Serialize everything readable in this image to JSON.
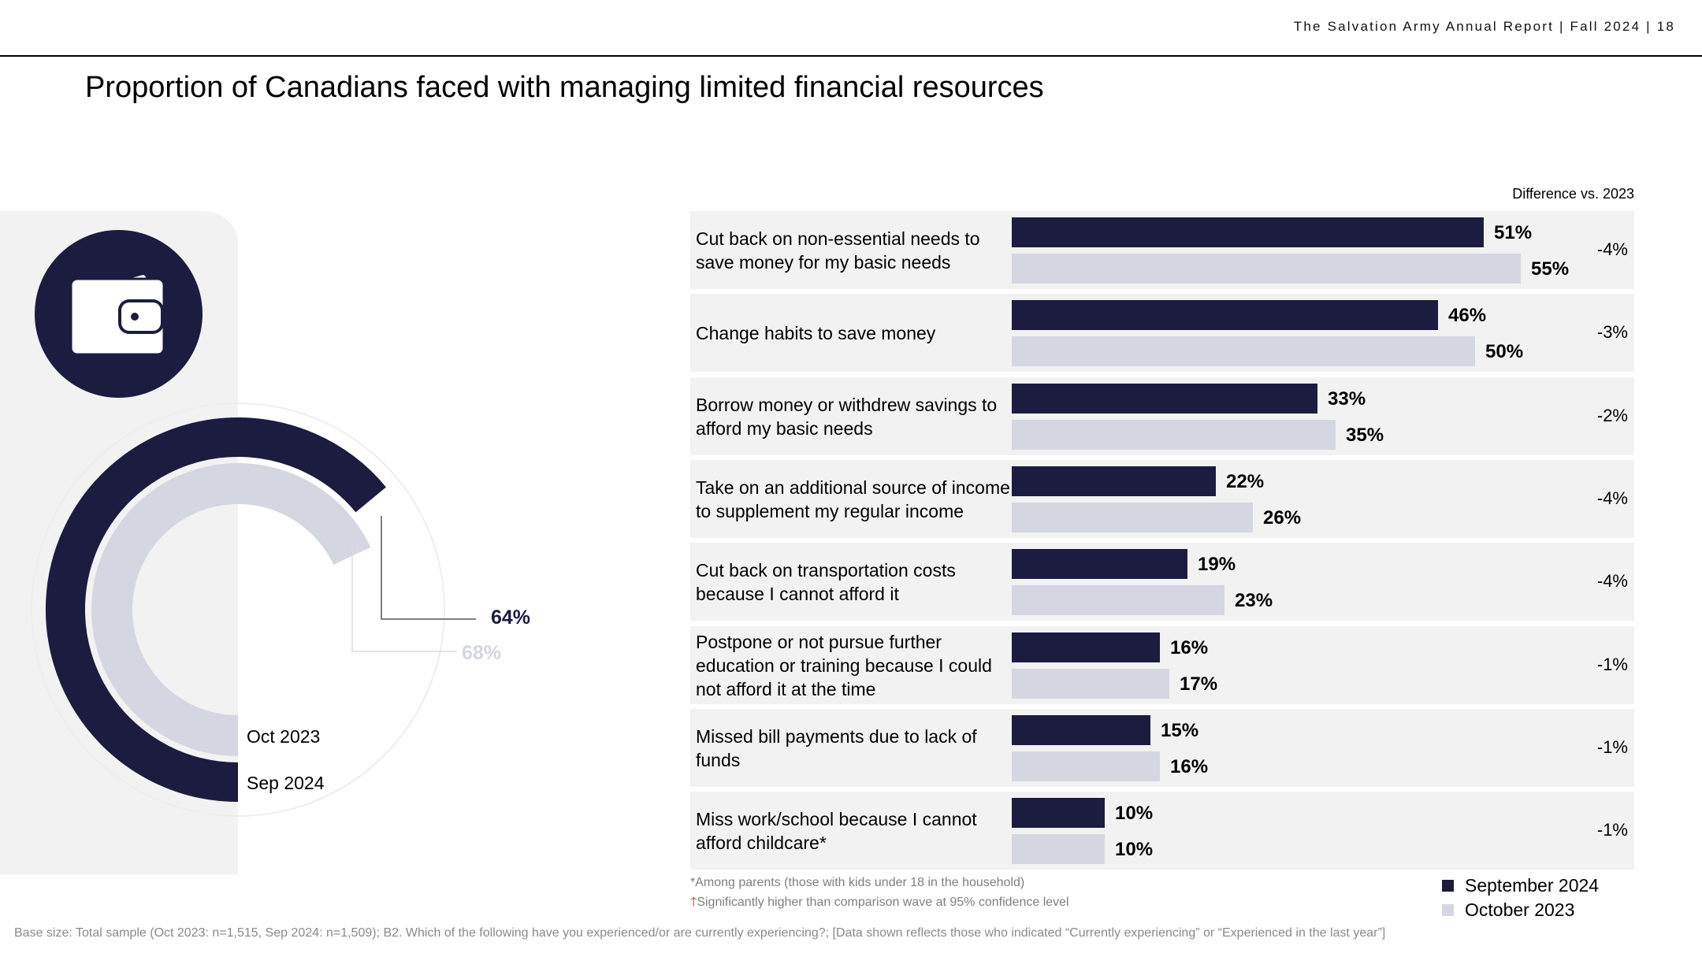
{
  "header": {
    "text": "The Salvation Army Annual Report | Fall 2024 | 18"
  },
  "title": "Proportion of Canadians faced with managing limited financial resources",
  "colors": {
    "sep": "#1b1c40",
    "oct": "#d4d7e2",
    "panel": "#f2f2f2"
  },
  "icons": {
    "wallet": "wallet-icon"
  },
  "donut": {
    "sep_label": "Sep 2024",
    "oct_label": "Oct 2023",
    "sep_value": "64%",
    "oct_value": "68%"
  },
  "chart_data": [
    {
      "type": "pie",
      "title": "Proportion of Canadians faced with managing limited financial resources",
      "categories": [
        "Sep 2024",
        "Oct 2023"
      ],
      "values": [
        64,
        68
      ],
      "units": "%"
    },
    {
      "type": "bar",
      "orientation": "horizontal",
      "diff_header": "Difference vs. 2023",
      "categories": [
        "Cut back on non-essential needs to save money for my basic needs",
        "Change habits to save money",
        "Borrow money or withdrew savings to afford my basic needs",
        "Take on an additional source of income to supplement my regular income",
        "Cut back on transportation costs because I cannot afford it",
        "Postpone or not pursue further education or training because I could not afford it at the time",
        "Missed bill payments due to lack of funds",
        "Miss work/school because I cannot afford childcare*"
      ],
      "series": [
        {
          "name": "September 2024",
          "values": [
            51,
            46,
            33,
            22,
            19,
            16,
            15,
            10
          ]
        },
        {
          "name": "October 2023",
          "values": [
            55,
            50,
            35,
            26,
            23,
            17,
            16,
            10
          ]
        }
      ],
      "differences": [
        "-4%",
        "-3%",
        "-2%",
        "-4%",
        "-4%",
        "-1%",
        "-1%",
        "-1%"
      ],
      "units": "%",
      "xlim": [
        0,
        100
      ]
    }
  ],
  "legend": {
    "sep": "September 2024",
    "oct": "October 2023"
  },
  "footnotes": {
    "parents": "*Among parents (those with kids under 18 in the household)",
    "significance_arrow": "🡑",
    "significance": "Significantly higher than comparison wave at 95% confidence level",
    "base": "Base size: Total sample (Oct 2023: n=1,515, Sep 2024: n=1,509); B2. Which of the following have you experienced/or are currently experiencing?; [Data shown reflects those who indicated “Currently experiencing” or “Experienced in the last year”]"
  }
}
